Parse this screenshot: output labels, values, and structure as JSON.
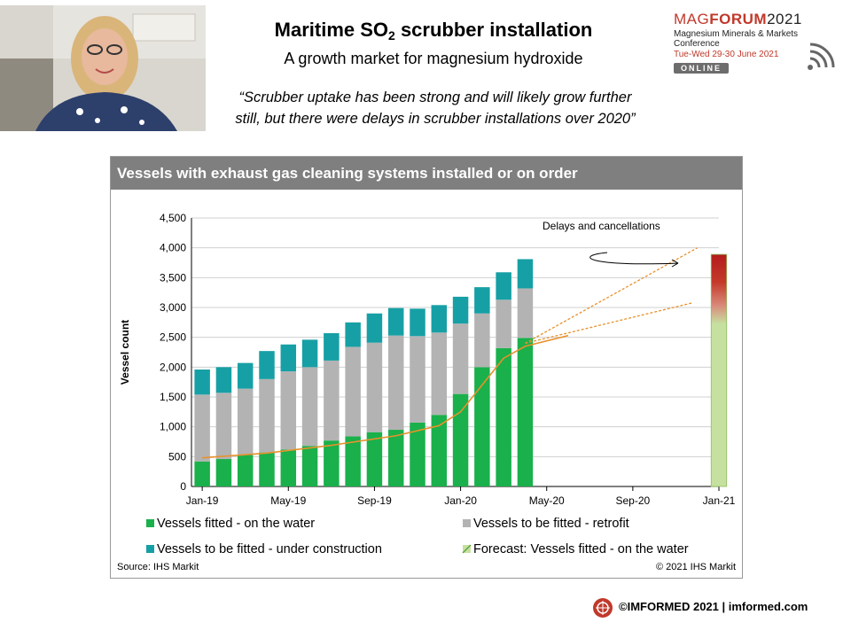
{
  "slide": {
    "title_main": "Maritime SO",
    "title_sub": "2",
    "title_rest": " scrubber installation",
    "subtitle": "A growth market for magnesium  hydroxide",
    "quote_line1": "“Scrubber uptake has been strong and will likely grow further",
    "quote_line2": "still, but there were delays in scrubber installations over 2020”",
    "logo": {
      "brand_a": "MAG",
      "brand_b": "FORUM",
      "brand_year": "2021",
      "line2": "Magnesium Minerals & Markets Conference",
      "line3": "Tue-Wed 29-30 June 2021",
      "online": "ONLINE"
    },
    "footer": "©IMFORMED 2021  | imformed.com"
  },
  "colors": {
    "on_water": "#1ab04b",
    "retrofit": "#b3b3b3",
    "under_construction": "#16a0a5",
    "forecast": "#c6e0a0",
    "trend": "#e8912c",
    "header": "#7f7f7f"
  },
  "chart_data": {
    "type": "bar",
    "stacked": true,
    "title": "Vessels with exhaust gas cleaning systems installed or on order",
    "ylabel": "Vessel count",
    "ylim": [
      0,
      4500
    ],
    "yticks": [
      "0",
      "500",
      "1,000",
      "1,500",
      "2,000",
      "2,500",
      "3,000",
      "3,500",
      "4,000",
      "4,500"
    ],
    "xtick_labels": [
      "Jan-19",
      "May-19",
      "Sep-19",
      "Jan-20",
      "May-20",
      "Sep-20",
      "Jan-21"
    ],
    "months_per_tick": 4,
    "bar_months": [
      "Jan-19",
      "Feb-19",
      "Mar-19",
      "Apr-19",
      "May-19",
      "Jun-19",
      "Jul-19",
      "Aug-19",
      "Sep-19",
      "Oct-19",
      "Nov-19",
      "Dec-19",
      "Jan-20",
      "Feb-20",
      "Mar-20"
    ],
    "series": [
      {
        "name": "Vessels fitted - on the water",
        "values": [
          420,
          460,
          530,
          570,
          620,
          680,
          770,
          840,
          910,
          950,
          1070,
          1200,
          1550,
          2000,
          2320
        ]
      },
      {
        "name": "Vessels to be fitted - retrofit",
        "values": [
          1120,
          1110,
          1110,
          1230,
          1310,
          1320,
          1340,
          1500,
          1500,
          1580,
          1450,
          1380,
          1180,
          900,
          810
        ]
      },
      {
        "name": "Vessels to be fitted - under construction",
        "values": [
          420,
          430,
          430,
          470,
          450,
          460,
          460,
          410,
          490,
          460,
          460,
          460,
          450,
          440,
          460
        ]
      },
      {
        "name": "Forecast: Vessels fitted - on the water",
        "month": "Jan-21",
        "value": 3890
      }
    ],
    "final_bar_on_water": 2490,
    "final_bar_retrofit": 830,
    "final_bar_under_construction": 490,
    "annotation": "Delays and cancellations",
    "source": "Source: IHS Markit",
    "copyright": "© 2021 IHS Markit",
    "legend_position": "bottom"
  }
}
